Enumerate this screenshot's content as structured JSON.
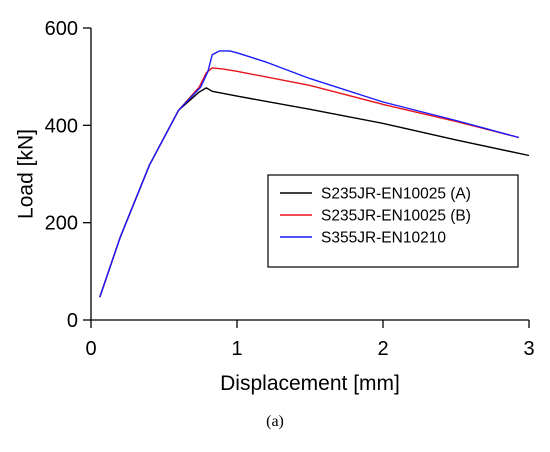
{
  "caption": "(a)",
  "chart_data": {
    "type": "line",
    "xlabel": "Displacement [mm]",
    "ylabel": "Load [kN]",
    "xlim": [
      0,
      3
    ],
    "ylim": [
      0,
      600
    ],
    "xticks": [
      0,
      1,
      2,
      3
    ],
    "yticks": [
      0,
      200,
      400,
      600
    ],
    "grid": false,
    "legend_position": "center-right",
    "series": [
      {
        "name": "S235JR-EN10025 (A)",
        "color": "#000000",
        "points": [
          [
            0.06,
            47
          ],
          [
            0.2,
            170
          ],
          [
            0.4,
            318
          ],
          [
            0.6,
            431
          ],
          [
            0.74,
            468
          ],
          [
            0.79,
            477
          ],
          [
            0.83,
            470
          ],
          [
            1.0,
            460
          ],
          [
            1.5,
            433
          ],
          [
            2.0,
            404
          ],
          [
            2.5,
            370
          ],
          [
            3.0,
            338
          ]
        ]
      },
      {
        "name": "S235JR-EN10025 (B)",
        "color": "#e8141c",
        "points": [
          [
            0.06,
            47
          ],
          [
            0.2,
            170
          ],
          [
            0.4,
            318
          ],
          [
            0.6,
            431
          ],
          [
            0.74,
            478
          ],
          [
            0.79,
            508
          ],
          [
            0.83,
            518
          ],
          [
            0.9,
            516
          ],
          [
            1.0,
            511
          ],
          [
            1.5,
            482
          ],
          [
            2.0,
            443
          ],
          [
            2.5,
            408
          ],
          [
            2.93,
            375
          ]
        ]
      },
      {
        "name": "S355JR-EN10210",
        "color": "#1a1aff",
        "points": [
          [
            0.06,
            47
          ],
          [
            0.2,
            170
          ],
          [
            0.4,
            318
          ],
          [
            0.6,
            431
          ],
          [
            0.75,
            478
          ],
          [
            0.8,
            510
          ],
          [
            0.83,
            545
          ],
          [
            0.88,
            553
          ],
          [
            0.95,
            553
          ],
          [
            1.0,
            549
          ],
          [
            1.2,
            530
          ],
          [
            1.5,
            496
          ],
          [
            2.0,
            448
          ],
          [
            2.5,
            410
          ],
          [
            2.93,
            375
          ]
        ]
      }
    ]
  }
}
